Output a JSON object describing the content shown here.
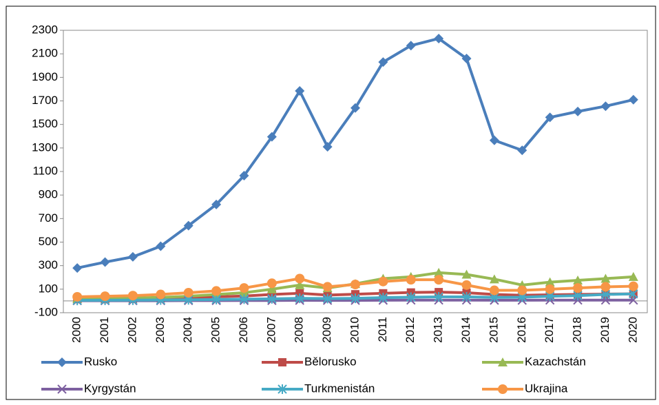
{
  "chart_data": {
    "type": "line",
    "categories": [
      "2000",
      "2001",
      "2002",
      "2003",
      "2004",
      "2005",
      "2006",
      "2007",
      "2008",
      "2009",
      "2010",
      "2011",
      "2012",
      "2013",
      "2014",
      "2015",
      "2016",
      "2017",
      "2018",
      "2019",
      "2020"
    ],
    "series": [
      {
        "name": "Rusko",
        "color": "#4a7ebb",
        "marker": "diamond",
        "values": [
          280,
          330,
          375,
          465,
          640,
          820,
          1065,
          1395,
          1785,
          1310,
          1640,
          2030,
          2170,
          2230,
          2060,
          1365,
          1280,
          1560,
          1610,
          1655,
          1710
        ]
      },
      {
        "name": "Bělorusko",
        "color": "#be4b48",
        "marker": "square",
        "values": [
          15,
          15,
          18,
          22,
          28,
          35,
          42,
          55,
          65,
          50,
          57,
          65,
          72,
          75,
          70,
          55,
          48,
          52,
          55,
          58,
          60
        ]
      },
      {
        "name": "Kazachstán",
        "color": "#98b954",
        "marker": "triangle",
        "values": [
          20,
          22,
          25,
          30,
          40,
          55,
          70,
          100,
          135,
          110,
          145,
          190,
          205,
          240,
          225,
          185,
          135,
          160,
          175,
          190,
          205
        ]
      },
      {
        "name": "Kyrgystán",
        "color": "#7d60a0",
        "marker": "x",
        "values": [
          2,
          2,
          2,
          2,
          3,
          3,
          4,
          4,
          5,
          5,
          5,
          6,
          7,
          7,
          7,
          6,
          6,
          7,
          7,
          7,
          7
        ]
      },
      {
        "name": "Turkmenistán",
        "color": "#46aac5",
        "marker": "star",
        "values": [
          5,
          6,
          7,
          8,
          10,
          12,
          15,
          18,
          22,
          20,
          22,
          28,
          32,
          35,
          35,
          30,
          32,
          40,
          45,
          55,
          60
        ]
      },
      {
        "name": "Ukrajina",
        "color": "#f79646",
        "marker": "circle",
        "values": [
          35,
          40,
          45,
          55,
          70,
          85,
          110,
          150,
          190,
          120,
          140,
          165,
          180,
          180,
          135,
          90,
          90,
          100,
          110,
          120,
          125
        ]
      }
    ],
    "ylim": [
      -100,
      2300
    ],
    "yticks": [
      -100,
      100,
      300,
      500,
      700,
      900,
      1100,
      1300,
      1500,
      1700,
      1900,
      2100,
      2300
    ],
    "grid": false,
    "legend": "bottom"
  }
}
